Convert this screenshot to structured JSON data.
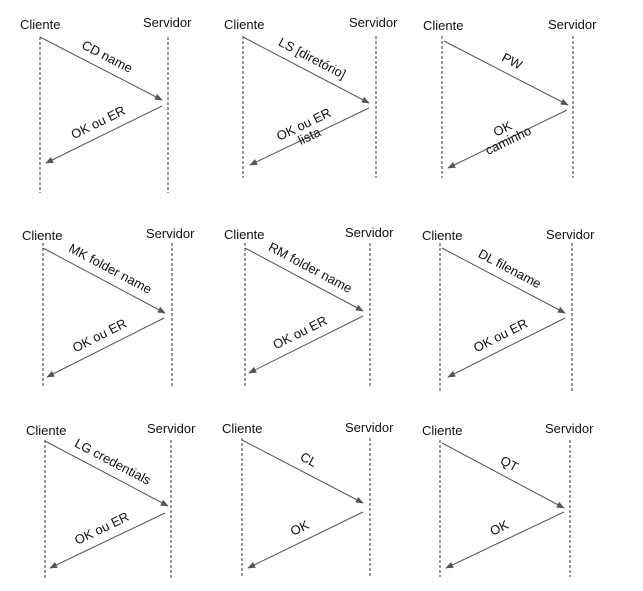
{
  "diagrams": [
    {
      "client": "Cliente",
      "server": "Servidor",
      "request": [
        "CD name"
      ],
      "response": [
        "OK ou ER"
      ]
    },
    {
      "client": "Cliente",
      "server": "Servidor",
      "request": [
        "LS [diretório]"
      ],
      "response": [
        "OK ou ER",
        "lista"
      ]
    },
    {
      "client": "Cliente",
      "server": "Servidor",
      "request": [
        "PW"
      ],
      "response": [
        "OK",
        "caminho"
      ]
    },
    {
      "client": "Cliente",
      "server": "Servidor",
      "request": [
        "MK folder name"
      ],
      "response": [
        "OK ou ER"
      ]
    },
    {
      "client": "Cliente",
      "server": "Servidor",
      "request": [
        "RM folder name"
      ],
      "response": [
        "OK ou ER"
      ]
    },
    {
      "client": "Cliente",
      "server": "Servidor",
      "request": [
        "DL filename"
      ],
      "response": [
        "OK ou ER"
      ]
    },
    {
      "client": "Cliente",
      "server": "Servidor",
      "request": [
        "LG credentials"
      ],
      "response": [
        "OK ou ER"
      ]
    },
    {
      "client": "Cliente",
      "server": "Servidor",
      "request": [
        "CL"
      ],
      "response": [
        "OK"
      ]
    },
    {
      "client": "Cliente",
      "server": "Servidor",
      "request": [
        "QT"
      ],
      "response": [
        "OK"
      ]
    }
  ]
}
